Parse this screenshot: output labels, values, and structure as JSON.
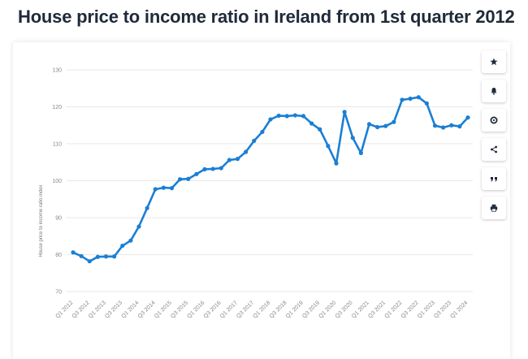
{
  "page": {
    "title": "House price to income ratio in Ireland from 1st quarter 2012"
  },
  "toolbar": {
    "buttons": [
      {
        "name": "favorite-button",
        "icon": "star-icon"
      },
      {
        "name": "notification-button",
        "icon": "bell-icon"
      },
      {
        "name": "settings-button",
        "icon": "gear-icon"
      },
      {
        "name": "share-button",
        "icon": "share-icon"
      },
      {
        "name": "cite-button",
        "icon": "quote-icon"
      },
      {
        "name": "print-button",
        "icon": "print-icon"
      }
    ]
  },
  "chart_data": {
    "type": "line",
    "title": "House price to income ratio in Ireland from 1st quarter 2012",
    "ylabel": "House price to income ratio index",
    "xlabel": "",
    "ylim": [
      70,
      130
    ],
    "yticks": [
      70,
      80,
      90,
      100,
      110,
      120,
      130
    ],
    "grid": true,
    "color": "#1a7fd4",
    "x": [
      "Q1 2012",
      "Q2 2012",
      "Q3 2012",
      "Q4 2012",
      "Q1 2013",
      "Q2 2013",
      "Q3 2013",
      "Q4 2013",
      "Q1 2014",
      "Q2 2014",
      "Q3 2014",
      "Q4 2014",
      "Q1 2015",
      "Q2 2015",
      "Q3 2015",
      "Q4 2015",
      "Q1 2016",
      "Q2 2016",
      "Q3 2016",
      "Q4 2016",
      "Q1 2017",
      "Q2 2017",
      "Q3 2017",
      "Q4 2017",
      "Q1 2018",
      "Q2 2018",
      "Q3 2018",
      "Q4 2018",
      "Q1 2019",
      "Q2 2019",
      "Q3 2019",
      "Q4 2019",
      "Q1 2020",
      "Q2 2020",
      "Q3 2020",
      "Q4 2020",
      "Q1 2021",
      "Q2 2021",
      "Q3 2021",
      "Q4 2021",
      "Q1 2022",
      "Q2 2022",
      "Q3 2022",
      "Q4 2022",
      "Q1 2023",
      "Q2 2023",
      "Q3 2023",
      "Q4 2023",
      "Q1 2024"
    ],
    "tick_labels": [
      "Q1 2012",
      "Q3 2012",
      "Q1 2013",
      "Q3 2013",
      "Q1 2014",
      "Q3 2014",
      "Q1 2015",
      "Q3 2015",
      "Q1 2016",
      "Q3 2016",
      "Q1 2017",
      "Q3 2017",
      "Q1 2018",
      "Q3 2018",
      "Q1 2019",
      "Q3 2019",
      "Q1 2020",
      "Q3 2020",
      "Q1 2021",
      "Q3 2021",
      "Q1 2022",
      "Q3 2022",
      "Q1 2023",
      "Q3 2023",
      "Q1 2024"
    ],
    "series": [
      {
        "values": [
          80.6,
          79.6,
          78.2,
          79.4,
          79.5,
          79.5,
          82.4,
          83.8,
          87.6,
          92.6,
          97.7,
          98.1,
          98.0,
          100.4,
          100.5,
          101.8,
          103.1,
          103.2,
          103.4,
          105.6,
          105.9,
          107.8,
          110.8,
          113.2,
          116.6,
          117.6,
          117.5,
          117.7,
          117.5,
          115.5,
          113.9,
          109.4,
          104.7,
          118.6,
          111.6,
          107.5,
          115.3,
          114.5,
          114.8,
          115.9,
          121.9,
          122.2,
          122.6,
          120.9,
          114.9,
          114.4,
          115.0,
          114.7,
          117.1
        ]
      }
    ]
  }
}
